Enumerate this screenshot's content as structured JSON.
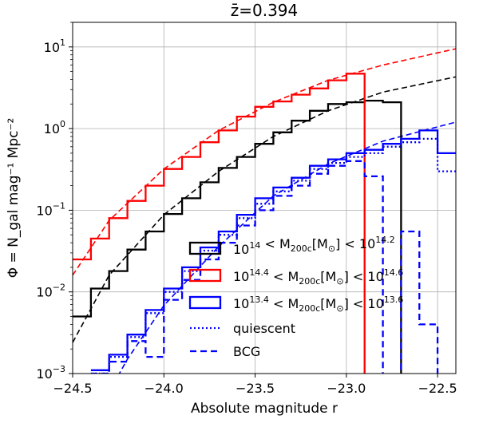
{
  "chart_data": {
    "type": "line",
    "title": "z̄=0.394",
    "xlabel": "Absolute magnitude r",
    "ylabel": "Φ = N_gal mag⁻¹ Mpc⁻²",
    "xlim": [
      -24.5,
      -22.4
    ],
    "ylim": [
      0.001,
      20
    ],
    "yscale": "log",
    "grid": true,
    "legend_position": "lower-right",
    "x_ticks": [
      {
        "value": -24.5,
        "label": "−24.5"
      },
      {
        "value": -24.0,
        "label": "−24.0"
      },
      {
        "value": -23.5,
        "label": "−23.5"
      },
      {
        "value": -23.0,
        "label": "−23.0"
      },
      {
        "value": -22.5,
        "label": "−22.5"
      }
    ],
    "y_ticks": [
      {
        "value": 0.001,
        "base": "10",
        "exp": "−3"
      },
      {
        "value": 0.01,
        "base": "10",
        "exp": "−2"
      },
      {
        "value": 0.1,
        "base": "10",
        "exp": "−1"
      },
      {
        "value": 1,
        "base": "10",
        "exp": "0"
      },
      {
        "value": 10,
        "base": "10",
        "exp": "1"
      }
    ],
    "bin_edges": [
      -24.5,
      -24.4,
      -24.3,
      -24.2,
      -24.1,
      -24.0,
      -23.9,
      -23.8,
      -23.7,
      -23.6,
      -23.5,
      -23.4,
      -23.3,
      -23.2,
      -23.1,
      -23.0,
      -22.9,
      -22.8,
      -22.7,
      -22.6,
      -22.5,
      -22.4
    ],
    "series": [
      {
        "name": "10^14 < M_200c[M_⊙] < 10^14.2",
        "color": "#000000",
        "style": "solid",
        "values": [
          0.005,
          0.011,
          0.018,
          0.033,
          0.055,
          0.09,
          0.14,
          0.22,
          0.33,
          0.45,
          0.65,
          0.9,
          1.25,
          1.65,
          2.0,
          2.1,
          2.2,
          2.1,
          0.0005,
          null,
          null
        ]
      },
      {
        "name": "10^14.4 < M_200c[M_⊙] < 10^14.6",
        "color": "#ff0000",
        "style": "solid",
        "values": [
          0.025,
          0.045,
          0.08,
          0.13,
          0.2,
          0.32,
          0.45,
          0.68,
          0.95,
          1.4,
          1.85,
          2.15,
          2.6,
          3.1,
          3.9,
          4.7,
          0.0005,
          null,
          null,
          null,
          null
        ]
      },
      {
        "name": "10^13.4 < M_200c[M_⊙] < 10^13.6",
        "color": "#0000ff",
        "style": "solid",
        "values": [
          null,
          0.0011,
          0.0017,
          0.003,
          0.006,
          0.011,
          0.02,
          0.035,
          0.055,
          0.088,
          0.14,
          0.19,
          0.25,
          0.35,
          0.42,
          0.5,
          0.55,
          0.65,
          0.75,
          0.95,
          0.5
        ]
      },
      {
        "name": "quiescent",
        "color": "#0000ff",
        "style": "dotted",
        "values": [
          null,
          0.001,
          0.0016,
          0.0028,
          0.0055,
          0.01,
          0.018,
          0.032,
          0.05,
          0.08,
          0.12,
          0.17,
          0.23,
          0.32,
          0.38,
          0.45,
          0.5,
          0.6,
          0.68,
          0.75,
          0.3
        ]
      },
      {
        "name": "BCG",
        "color": "#0000ff",
        "style": "dashed",
        "values": [
          null,
          0.001,
          0.0014,
          0.0025,
          0.0016,
          0.008,
          0.014,
          0.025,
          0.04,
          0.065,
          0.1,
          0.15,
          0.2,
          0.28,
          0.35,
          0.4,
          0.26,
          0.0005,
          0.055,
          0.004,
          0.0005
        ]
      }
    ],
    "fits": [
      {
        "color": "#000000",
        "x": [
          -24.5,
          -24.3,
          -24.0,
          -23.7,
          -23.4,
          -23.1,
          -22.8,
          -22.4
        ],
        "y": [
          0.0024,
          0.016,
          0.088,
          0.3,
          0.8,
          1.65,
          2.8,
          4.3
        ]
      },
      {
        "color": "#ff0000",
        "x": [
          -24.5,
          -24.3,
          -24.0,
          -23.7,
          -23.4,
          -23.1,
          -22.8,
          -22.4
        ],
        "y": [
          0.016,
          0.075,
          0.32,
          0.95,
          2.1,
          3.9,
          6.0,
          9.5
        ]
      },
      {
        "color": "#0000ff",
        "x": [
          -24.3,
          -24.2,
          -24.0,
          -23.7,
          -23.4,
          -23.1,
          -22.8,
          -22.4
        ],
        "y": [
          0.0006,
          0.0015,
          0.0068,
          0.036,
          0.15,
          0.37,
          0.7,
          1.2
        ]
      }
    ]
  }
}
